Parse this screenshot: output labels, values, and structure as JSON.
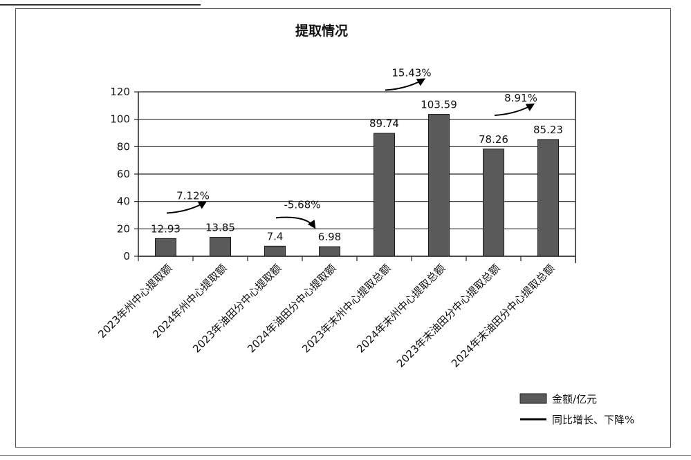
{
  "chart_data": {
    "type": "bar",
    "title": "提取情况",
    "categories": [
      "2023年州中心提取额",
      "2024年州中心提取额",
      "2023年油田分中心提取额",
      "2024年油田分中心提取额",
      "2023年末州中心提取总额",
      "2024年末州中心提取总额",
      "2023年末油田分中心提取总额",
      "2024年末油田分中心提取总额"
    ],
    "series": [
      {
        "name": "金额/亿元",
        "values": [
          12.93,
          13.85,
          7.4,
          6.98,
          89.74,
          103.59,
          78.26,
          85.23
        ]
      }
    ],
    "data_labels": [
      "12.93",
      "13.85",
      "7.4",
      "6.98",
      "89.74",
      "103.59",
      "78.26",
      "85.23"
    ],
    "ylim": [
      0,
      120
    ],
    "yticks": [
      0,
      20,
      40,
      60,
      80,
      100,
      120
    ],
    "grid": true,
    "legend_position": "bottom-right",
    "legend": [
      {
        "label": "金额/亿元",
        "marker": "bar"
      },
      {
        "label": "同比增长、下降%",
        "marker": "line"
      }
    ],
    "annotations": [
      {
        "text": "7.12%",
        "from_category": 0,
        "to_category": 1
      },
      {
        "text": "-5.68%",
        "from_category": 2,
        "to_category": 3
      },
      {
        "text": "15.43%",
        "from_category": 4,
        "to_category": 5
      },
      {
        "text": "8.91%",
        "from_category": 6,
        "to_category": 7
      }
    ],
    "colors": {
      "bar": "#5a5a5a",
      "bar_edge": "#1a1a1a",
      "grid": "#222222",
      "arrow": "#000000"
    }
  }
}
